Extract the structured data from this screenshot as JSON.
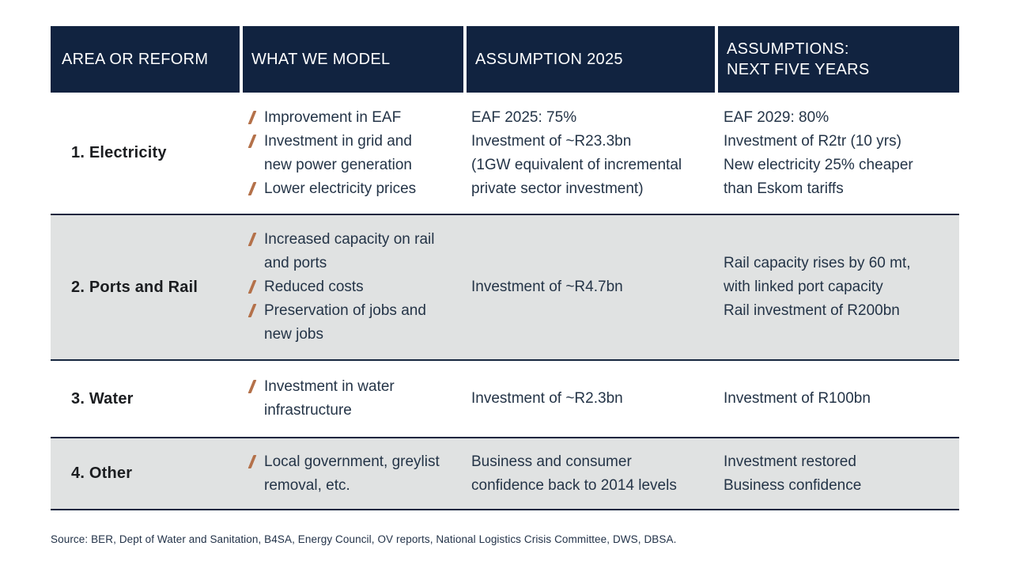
{
  "colors": {
    "header_bg": "#112340",
    "header_text": "#FFFFFF",
    "body_text": "#243447",
    "label_text": "#1B1D20",
    "alt_row_bg": "#E0E2E2",
    "row_border": "#16263F",
    "accent_slash": "#B4714A",
    "page_bg": "#FFFFFF"
  },
  "header": {
    "col_area": "AREA OR REFORM",
    "col_model": "WHAT WE MODEL",
    "col_assumption": "ASSUMPTION 2025",
    "col_next": "ASSUMPTIONS:\nNEXT FIVE YEARS"
  },
  "bullet_glyph": "/",
  "rows": [
    {
      "area": "1. Electricity",
      "model_items": [
        "Improvement in EAF",
        "Investment in grid and new power generation",
        "Lower electricity prices"
      ],
      "assumption_2025": [
        "EAF 2025: 75%",
        "Investment of ~R23.3bn",
        "(1GW equivalent of incremental private sector investment)"
      ],
      "next_five_years": [
        "EAF 2029: 80%",
        "Investment of R2tr (10 yrs)",
        "New electricity 25% cheaper than Eskom tariffs"
      ]
    },
    {
      "area": "2. Ports and Rail",
      "model_items": [
        "Increased capacity on rail and ports",
        "Reduced costs",
        "Preservation of jobs and new jobs"
      ],
      "assumption_2025": [
        "Investment of ~R4.7bn"
      ],
      "next_five_years": [
        "Rail capacity rises by 60 mt, with linked port capacity",
        "Rail investment of R200bn"
      ]
    },
    {
      "area": "3. Water",
      "model_items": [
        "Investment in water infrastructure"
      ],
      "assumption_2025": [
        "Investment of ~R2.3bn"
      ],
      "next_five_years": [
        "Investment of R100bn"
      ]
    },
    {
      "area": "4. Other",
      "model_items": [
        "Local government, greylist removal, etc."
      ],
      "assumption_2025": [
        "Business and consumer confidence back to 2014 levels"
      ],
      "next_five_years": [
        "Investment restored",
        "Business confidence"
      ]
    }
  ],
  "source": "Source: BER, Dept of Water and Sanitation, B4SA, Energy Council, OV reports, National Logistics Crisis Committee, DWS, DBSA."
}
